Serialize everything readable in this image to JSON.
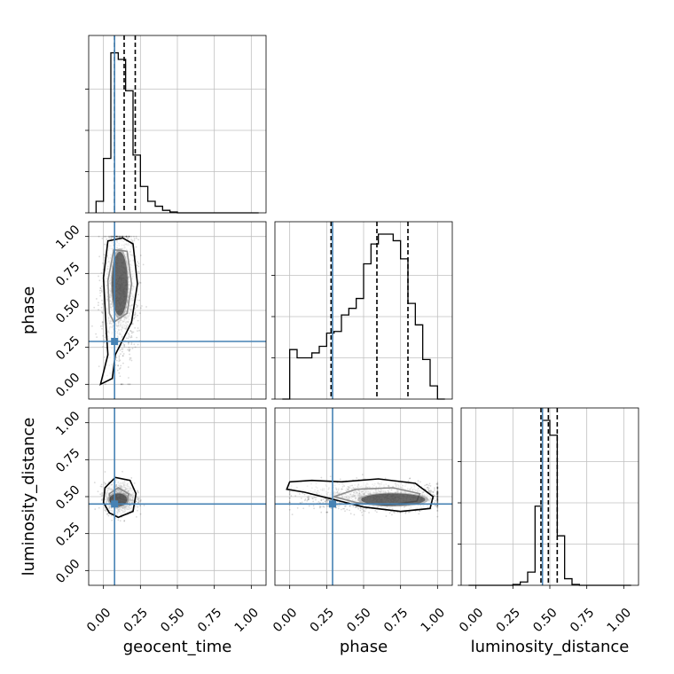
{
  "figure": {
    "type": "corner-plot",
    "params": [
      "geocent_time",
      "phase",
      "luminosity_distance"
    ],
    "truths": {
      "geocent_time": 0.075,
      "phase": 0.29,
      "luminosity_distance": 0.45
    },
    "axis_range": [
      -0.1,
      1.1
    ],
    "tick_labels": [
      "0.00",
      "0.25",
      "0.50",
      "0.75",
      "1.00"
    ],
    "colors": {
      "truth": "#4682b4",
      "hist": "#000000",
      "grid": "#c0c0c0"
    }
  },
  "chart_data": [
    {
      "type": "histogram",
      "panel": "geocent_time",
      "xlabel": "geocent_time",
      "bins_edges": [
        -0.05,
        0.0,
        0.05,
        0.1,
        0.15,
        0.2,
        0.25,
        0.3,
        0.35,
        0.4,
        0.45,
        0.5,
        0.55,
        0.6,
        0.65,
        0.7,
        0.75,
        0.8,
        0.85,
        0.9,
        0.95,
        1.0,
        1.05
      ],
      "values": [
        0.07,
        0.33,
        0.97,
        0.93,
        0.74,
        0.35,
        0.16,
        0.07,
        0.04,
        0.015,
        0.005,
        0,
        0,
        0,
        0,
        0,
        0,
        0,
        0,
        0,
        0,
        0
      ],
      "quantiles": [
        0.075,
        0.14,
        0.215
      ],
      "truth": 0.075
    },
    {
      "type": "histogram",
      "panel": "phase",
      "xlabel": "phase",
      "bins_edges": [
        -0.05,
        0.0,
        0.05,
        0.1,
        0.15,
        0.2,
        0.25,
        0.3,
        0.35,
        0.4,
        0.45,
        0.5,
        0.55,
        0.6,
        0.65,
        0.7,
        0.75,
        0.8,
        0.85,
        0.9,
        0.95,
        1.0,
        1.05
      ],
      "values": [
        0,
        0.3,
        0.25,
        0.25,
        0.28,
        0.32,
        0.4,
        0.41,
        0.51,
        0.55,
        0.61,
        0.82,
        0.94,
        1.0,
        1.0,
        0.96,
        0.85,
        0.58,
        0.45,
        0.24,
        0.08,
        0
      ],
      "quantiles": [
        0.28,
        0.59,
        0.8
      ],
      "truth": 0.29
    },
    {
      "type": "histogram",
      "panel": "luminosity_distance",
      "xlabel": "luminosity_distance",
      "bins_edges": [
        -0.05,
        0.0,
        0.05,
        0.1,
        0.15,
        0.2,
        0.25,
        0.3,
        0.35,
        0.4,
        0.45,
        0.5,
        0.55,
        0.6,
        0.65,
        0.7,
        0.75,
        0.8,
        0.85,
        0.9,
        0.95,
        1.0,
        1.05
      ],
      "values": [
        0,
        0,
        0,
        0,
        0,
        0,
        0.005,
        0.02,
        0.08,
        0.48,
        1.0,
        0.91,
        0.3,
        0.04,
        0.005,
        0,
        0,
        0,
        0,
        0,
        0,
        0
      ],
      "quantiles": [
        0.44,
        0.49,
        0.55
      ],
      "truth": 0.45
    },
    {
      "type": "heatmap",
      "panel": "phase-vs-geocent_time",
      "x_param": "geocent_time",
      "y_param": "phase",
      "mode": {
        "x": 0.11,
        "y": 0.68
      },
      "contours": [
        {
          "level": "inner",
          "points": [
            [
              0.07,
              0.42
            ],
            [
              0.16,
              0.48
            ],
            [
              0.19,
              0.68
            ],
            [
              0.16,
              0.9
            ],
            [
              0.07,
              0.91
            ],
            [
              0.03,
              0.7
            ],
            [
              0.04,
              0.48
            ]
          ]
        },
        {
          "level": "outer",
          "points": [
            [
              -0.02,
              0.0
            ],
            [
              0.06,
              0.04
            ],
            [
              0.08,
              0.2
            ],
            [
              0.19,
              0.42
            ],
            [
              0.23,
              0.68
            ],
            [
              0.2,
              0.95
            ],
            [
              0.13,
              0.99
            ],
            [
              0.03,
              0.97
            ],
            [
              0.0,
              0.72
            ],
            [
              0.02,
              0.35
            ],
            [
              0.03,
              0.2
            ]
          ]
        }
      ],
      "truth": [
        0.075,
        0.29
      ]
    },
    {
      "type": "heatmap",
      "panel": "luminosity_distance-vs-geocent_time",
      "x_param": "geocent_time",
      "y_param": "luminosity_distance",
      "mode": {
        "x": 0.1,
        "y": 0.48
      },
      "contours": [
        {
          "level": "inner",
          "points": [
            [
              0.05,
              0.46
            ],
            [
              0.1,
              0.43
            ],
            [
              0.16,
              0.46
            ],
            [
              0.17,
              0.52
            ],
            [
              0.1,
              0.56
            ],
            [
              0.04,
              0.52
            ]
          ]
        },
        {
          "level": "outer",
          "points": [
            [
              0.04,
              0.39
            ],
            [
              0.1,
              0.36
            ],
            [
              0.2,
              0.4
            ],
            [
              0.22,
              0.52
            ],
            [
              0.18,
              0.61
            ],
            [
              0.08,
              0.63
            ],
            [
              0.01,
              0.56
            ],
            [
              0.0,
              0.46
            ]
          ]
        }
      ],
      "truth": [
        0.075,
        0.45
      ]
    },
    {
      "type": "heatmap",
      "panel": "luminosity_distance-vs-phase",
      "x_param": "phase",
      "y_param": "luminosity_distance",
      "mode": {
        "x": 0.7,
        "y": 0.48
      },
      "contours": [
        {
          "level": "inner",
          "points": [
            [
              0.3,
              0.5
            ],
            [
              0.45,
              0.46
            ],
            [
              0.65,
              0.44
            ],
            [
              0.86,
              0.47
            ],
            [
              0.88,
              0.52
            ],
            [
              0.7,
              0.56
            ],
            [
              0.45,
              0.55
            ]
          ]
        },
        {
          "level": "outer",
          "points": [
            [
              -0.02,
              0.55
            ],
            [
              0.1,
              0.53
            ],
            [
              0.3,
              0.48
            ],
            [
              0.5,
              0.43
            ],
            [
              0.75,
              0.4
            ],
            [
              0.95,
              0.42
            ],
            [
              0.97,
              0.5
            ],
            [
              0.85,
              0.59
            ],
            [
              0.6,
              0.62
            ],
            [
              0.35,
              0.6
            ],
            [
              0.15,
              0.61
            ],
            [
              0.0,
              0.6
            ]
          ]
        }
      ],
      "truth": [
        0.29,
        0.45
      ]
    }
  ]
}
